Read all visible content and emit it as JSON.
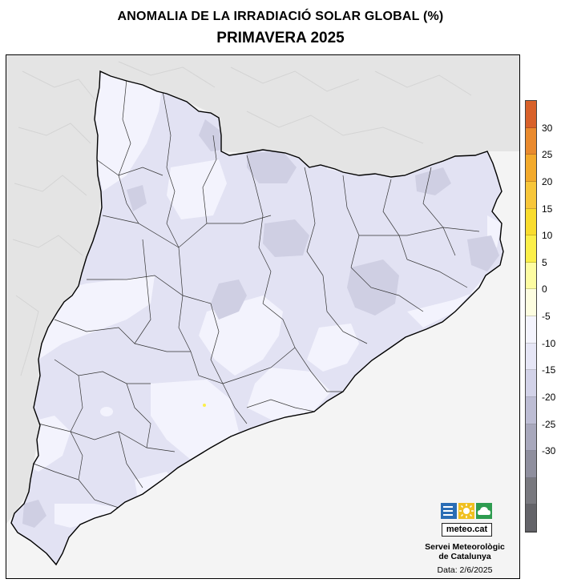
{
  "header": {
    "title": "ANOMALIA DE LA IRRADIACIÓ SOLAR GLOBAL (%)",
    "subtitle": "PRIMAVERA 2025"
  },
  "legend": {
    "labels": [
      "30",
      "25",
      "20",
      "15",
      "10",
      "5",
      "0",
      "-5",
      "-10",
      "-15",
      "-20",
      "-25",
      "-30"
    ],
    "colors": [
      "#d8612a",
      "#e98a2e",
      "#f3aa2c",
      "#f7c63a",
      "#f9dc2e",
      "#fbef4a",
      "#fdfca2",
      "#fdfde0",
      "#f4f4fd",
      "#e6e6f6",
      "#d2d2e8",
      "#bdbdd4",
      "#a8a8bc",
      "#8f8f9e",
      "#79797f",
      "#646469"
    ]
  },
  "map": {
    "colors": {
      "terrain": "#ececec",
      "sea": "#f4f4f4",
      "anomaly_minus5_to_0": "#f3f3fd",
      "anomaly_minus10_to_minus5": "#e2e2f3",
      "anomaly_minus15_to_minus10": "#cfcfe3",
      "border": "#000000"
    }
  },
  "branding": {
    "logo_text": "meteo.cat",
    "organization_line1": "Servei Meteorològic",
    "organization_line2": "de Catalunya",
    "date": "Data: 2/6/2025"
  }
}
